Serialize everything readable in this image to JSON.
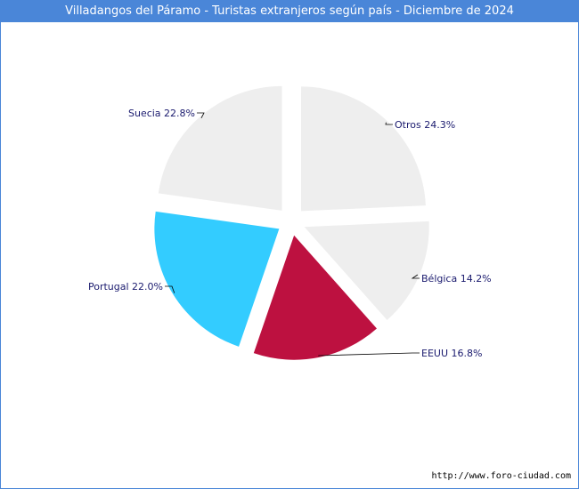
{
  "title": "Villadangos del Páramo - Turistas extranjeros según país - Diciembre de 2024",
  "footer": "http://www.foro-ciudad.com",
  "chart_data": {
    "type": "pie",
    "title": "Villadangos del Páramo - Turistas extranjeros según país - Diciembre de 2024",
    "slices": [
      {
        "name": "Otros",
        "value": 24.3,
        "label": "Otros 24.3%",
        "color": "#eeeeee"
      },
      {
        "name": "Bélgica",
        "value": 14.2,
        "label": "Bélgica 14.2%",
        "color": "#eeeeee"
      },
      {
        "name": "EEUU",
        "value": 16.8,
        "label": "EEUU 16.8%",
        "color": "#bd1140"
      },
      {
        "name": "Portugal",
        "value": 22.0,
        "label": "Portugal 22.0%",
        "color": "#33ccff"
      },
      {
        "name": "Suecia",
        "value": 22.8,
        "label": "Suecia 22.8%",
        "color": "#eeeeee"
      }
    ]
  }
}
